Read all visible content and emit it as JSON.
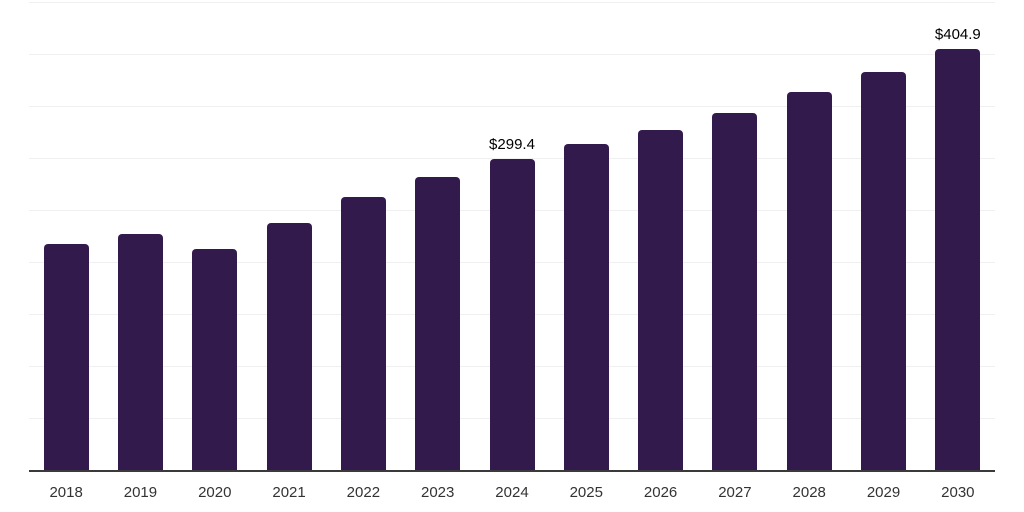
{
  "chart_data": {
    "type": "bar",
    "title": "",
    "xlabel": "",
    "ylabel": "",
    "categories": [
      "2018",
      "2019",
      "2020",
      "2021",
      "2022",
      "2023",
      "2024",
      "2025",
      "2026",
      "2027",
      "2028",
      "2029",
      "2030"
    ],
    "values": [
      217.0,
      227.3,
      212.3,
      237.6,
      262.9,
      282.2,
      299.4,
      313.0,
      327.1,
      343.1,
      363.0,
      382.9,
      404.9
    ],
    "data_labels": {
      "2024": "$299.4",
      "2030": "$404.9"
    },
    "ylim": [
      0,
      450
    ],
    "grid_step": 50,
    "grid": true,
    "y_tick_labels_shown": false,
    "legend_position": "none",
    "colors": {
      "bar": "#331a4d",
      "gridline": "#f0f0f0",
      "axis_line": "#3a3a3a",
      "tick_label": "#333333",
      "data_label": "#000000",
      "background": "#ffffff"
    }
  }
}
